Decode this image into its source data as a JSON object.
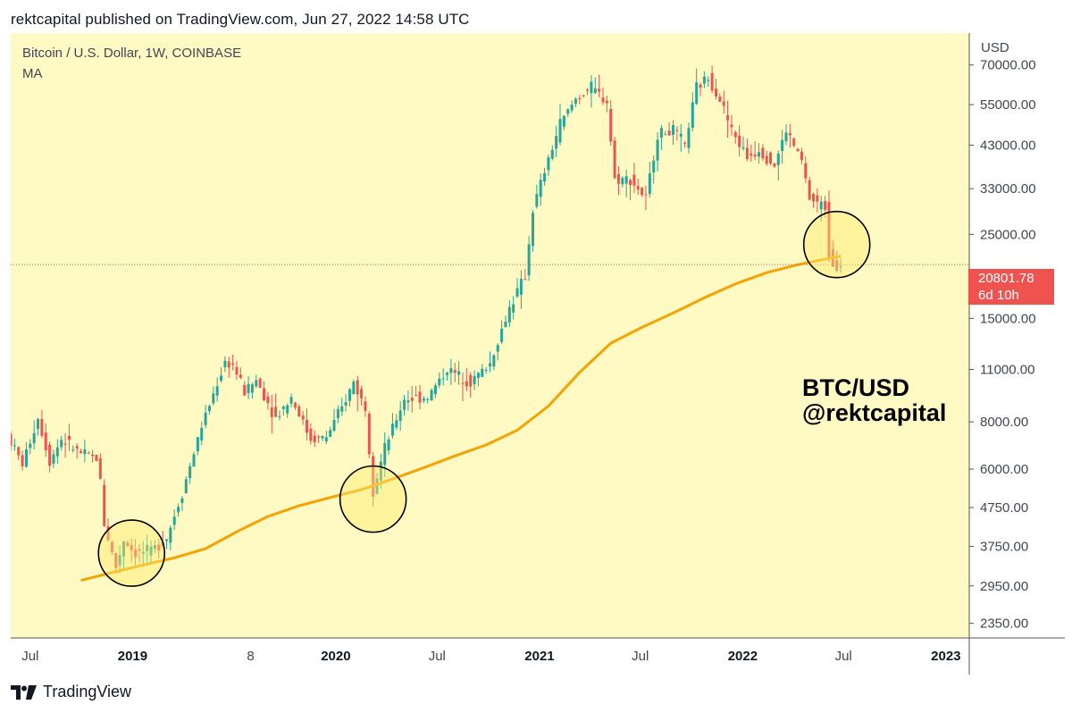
{
  "header": {
    "published": "rektcapital published on TradingView.com, Jun 27, 2022 14:58 UTC"
  },
  "legend": {
    "symbol": "Bitcoin / U.S. Dollar, 1W, COINBASE",
    "indicator": "MA"
  },
  "axis": {
    "currency": "USD"
  },
  "annotation": {
    "line1": "BTC/USD",
    "line2": "@rektcapital"
  },
  "price_tag": {
    "price": "20801.78",
    "countdown": "6d 10h"
  },
  "footer": {
    "brand": "TradingView"
  },
  "colors": {
    "background": "#fff9c4",
    "up": "#26a69a",
    "down": "#ef5350",
    "ma": "#f5a300",
    "circle_fill": "#ffeb70",
    "circle_stroke": "#000000"
  },
  "chart_data": {
    "type": "candlestick",
    "title": "Bitcoin / U.S. Dollar, 1W, COINBASE",
    "ylabel": "USD",
    "y_scale": "log",
    "ylim": [
      2150,
      85000
    ],
    "xlim": [
      "2018-05-27",
      "2023-02-12"
    ],
    "current_price": 20801.78,
    "y_ticks": [
      70000,
      55000,
      43000,
      33000,
      25000,
      15000,
      11000,
      8000,
      6000,
      4750,
      3750,
      2950,
      2350
    ],
    "y_tick_labels": [
      "70000.00",
      "55000.00",
      "43000.00",
      "33000.00",
      "25000.00",
      "15000.00",
      "11000.00",
      "8000.00",
      "6000.00",
      "4750.00",
      "3750.00",
      "2950.00",
      "2350.00"
    ],
    "x_ticks": [
      {
        "date": "2018-07-01",
        "label": "Jul",
        "bold": false
      },
      {
        "date": "2019-01-01",
        "label": "2019",
        "bold": true
      },
      {
        "date": "2019-08-01",
        "label": "8",
        "bold": false
      },
      {
        "date": "2020-01-01",
        "label": "2020",
        "bold": true
      },
      {
        "date": "2020-07-01",
        "label": "Jul",
        "bold": false
      },
      {
        "date": "2021-01-01",
        "label": "2021",
        "bold": true
      },
      {
        "date": "2021-07-01",
        "label": "Jul",
        "bold": false
      },
      {
        "date": "2022-01-01",
        "label": "2022",
        "bold": true
      },
      {
        "date": "2022-07-01",
        "label": "Jul",
        "bold": false
      },
      {
        "date": "2023-01-01",
        "label": "2023",
        "bold": true
      }
    ],
    "price_path": [
      [
        "2018-05-27",
        7400
      ],
      [
        "2018-06-24",
        6200
      ],
      [
        "2018-07-22",
        8200
      ],
      [
        "2018-08-12",
        6300
      ],
      [
        "2018-09-02",
        7200
      ],
      [
        "2018-10-07",
        6600
      ],
      [
        "2018-11-04",
        6400
      ],
      [
        "2018-11-11",
        5600
      ],
      [
        "2018-11-18",
        4300
      ],
      [
        "2018-12-09",
        3300
      ],
      [
        "2018-12-23",
        3900
      ],
      [
        "2019-01-13",
        3600
      ],
      [
        "2019-02-10",
        3650
      ],
      [
        "2019-03-10",
        3950
      ],
      [
        "2019-04-07",
        5200
      ],
      [
        "2019-05-12",
        7800
      ],
      [
        "2019-06-23",
        11500
      ],
      [
        "2019-07-07",
        11300
      ],
      [
        "2019-07-28",
        9600
      ],
      [
        "2019-08-18",
        10300
      ],
      [
        "2019-09-22",
        8200
      ],
      [
        "2019-10-20",
        9300
      ],
      [
        "2019-11-24",
        7200
      ],
      [
        "2019-12-22",
        7300
      ],
      [
        "2020-01-19",
        8700
      ],
      [
        "2020-02-09",
        10200
      ],
      [
        "2020-03-01",
        8700
      ],
      [
        "2020-03-15",
        5300
      ],
      [
        "2020-04-05",
        6800
      ],
      [
        "2020-05-10",
        9200
      ],
      [
        "2020-06-21",
        9300
      ],
      [
        "2020-07-26",
        11000
      ],
      [
        "2020-09-06",
        10200
      ],
      [
        "2020-10-11",
        11400
      ],
      [
        "2020-11-15",
        16000
      ],
      [
        "2020-12-13",
        19400
      ],
      [
        "2020-12-27",
        29000
      ],
      [
        "2021-01-10",
        34000
      ],
      [
        "2021-02-14",
        49000
      ],
      [
        "2021-03-14",
        57000
      ],
      [
        "2021-04-11",
        61000
      ],
      [
        "2021-05-09",
        56000
      ],
      [
        "2021-05-23",
        35000
      ],
      [
        "2021-06-20",
        35000
      ],
      [
        "2021-07-18",
        31000
      ],
      [
        "2021-08-08",
        46000
      ],
      [
        "2021-09-05",
        47000
      ],
      [
        "2021-09-26",
        43000
      ],
      [
        "2021-10-17",
        61000
      ],
      [
        "2021-11-07",
        65000
      ],
      [
        "2021-11-28",
        57000
      ],
      [
        "2021-12-19",
        47000
      ],
      [
        "2022-01-16",
        40000
      ],
      [
        "2022-02-06",
        42000
      ],
      [
        "2022-03-06",
        38000
      ],
      [
        "2022-03-27",
        47000
      ],
      [
        "2022-04-24",
        39000
      ],
      [
        "2022-05-08",
        31000
      ],
      [
        "2022-06-05",
        29500
      ],
      [
        "2022-06-12",
        22500
      ],
      [
        "2022-06-19",
        21000
      ],
      [
        "2022-06-26",
        20801.78
      ]
    ],
    "series": [
      {
        "name": "MA",
        "type": "line",
        "points": [
          [
            "2018-09-30",
            3050
          ],
          [
            "2018-11-25",
            3200
          ],
          [
            "2019-01-20",
            3350
          ],
          [
            "2019-03-17",
            3500
          ],
          [
            "2019-05-12",
            3700
          ],
          [
            "2019-07-07",
            4100
          ],
          [
            "2019-09-01",
            4500
          ],
          [
            "2019-10-27",
            4800
          ],
          [
            "2019-12-22",
            5050
          ],
          [
            "2020-02-16",
            5300
          ],
          [
            "2020-04-12",
            5650
          ],
          [
            "2020-06-07",
            6050
          ],
          [
            "2020-08-02",
            6500
          ],
          [
            "2020-09-27",
            6950
          ],
          [
            "2020-11-22",
            7600
          ],
          [
            "2021-01-17",
            8800
          ],
          [
            "2021-03-14",
            10800
          ],
          [
            "2021-05-09",
            12900
          ],
          [
            "2021-07-04",
            14200
          ],
          [
            "2021-08-29",
            15500
          ],
          [
            "2021-10-24",
            17000
          ],
          [
            "2021-12-19",
            18500
          ],
          [
            "2022-02-13",
            19800
          ],
          [
            "2022-04-10",
            20800
          ],
          [
            "2022-06-05",
            21600
          ],
          [
            "2022-06-26",
            21900
          ]
        ]
      }
    ],
    "highlights": [
      {
        "center_date": "2018-12-30",
        "center_price": 3600
      },
      {
        "center_date": "2020-03-08",
        "center_price": 5000
      },
      {
        "center_date": "2022-06-19",
        "center_price": 23500
      }
    ]
  }
}
